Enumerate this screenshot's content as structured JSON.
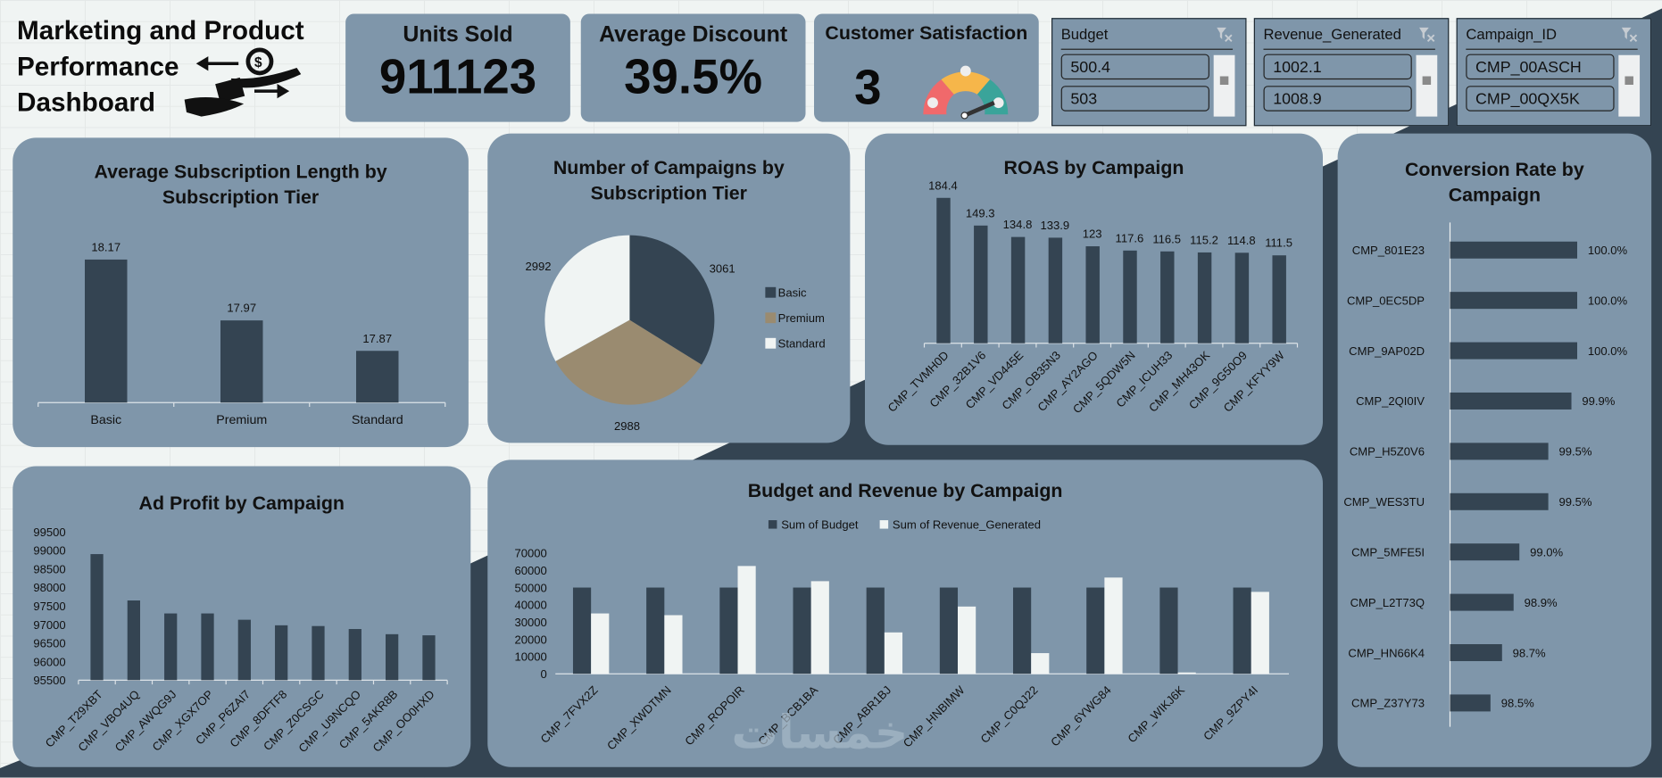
{
  "header": {
    "title_lines": [
      "Marketing and Product",
      "Performance",
      "Dashboard"
    ],
    "logo_icon": "hands-money-exchange-icon"
  },
  "kpis": {
    "units_sold": {
      "label": "Units Sold",
      "value": "911123"
    },
    "avg_discount": {
      "label": "Average Discount",
      "value": "39.5%"
    },
    "customer_satisfaction": {
      "label": "Customer Satisfaction",
      "value": "3",
      "gauge_icon": "satisfaction-gauge-icon"
    }
  },
  "slicers": [
    {
      "header": "Budget",
      "items": [
        "500.4",
        "503"
      ],
      "clear_icon": "clear-filter-icon"
    },
    {
      "header": "Revenue_Generated",
      "items": [
        "1002.1",
        "1008.9"
      ],
      "clear_icon": "clear-filter-icon"
    },
    {
      "header": "Campaign_ID",
      "items": [
        "CMP_00ASCH",
        "CMP_00QX5K"
      ],
      "clear_icon": "clear-filter-icon"
    }
  ],
  "colors": {
    "panel": "#7f96aa",
    "dark": "#344452",
    "light": "#f0f4f3",
    "premium": "#9a8b70",
    "gauge_red": "#f0696b",
    "gauge_yellow": "#f6b64a",
    "gauge_teal": "#3aa49a"
  },
  "chart_data": [
    {
      "id": "avg_sub_length",
      "type": "bar",
      "title": "Average Subscription Length by Subscription Tier",
      "title_lines": [
        "Average Subscription Length by",
        "Subscription Tier"
      ],
      "categories": [
        "Basic",
        "Premium",
        "Standard"
      ],
      "values": [
        18.17,
        17.97,
        17.87
      ],
      "value_labels": [
        "18.17",
        "17.97",
        "17.87"
      ],
      "ylim": [
        17.7,
        18.25
      ],
      "xlabel": "",
      "ylabel": "",
      "grid": false
    },
    {
      "id": "campaigns_by_tier",
      "type": "pie",
      "title": "Number of Campaigns by Subscription Tier",
      "title_lines": [
        "Number of Campaigns by",
        "Subscription Tier"
      ],
      "categories": [
        "Basic",
        "Premium",
        "Standard"
      ],
      "values": [
        3061,
        2988,
        2992
      ],
      "value_labels": [
        "3061",
        "2988",
        "2992"
      ],
      "legend": [
        "Basic",
        "Premium",
        "Standard"
      ],
      "legend_position": "right"
    },
    {
      "id": "roas_by_campaign",
      "type": "bar",
      "title": "ROAS by Campaign",
      "categories": [
        "CMP_TVMH0D",
        "CMP_32B1V6",
        "CMP_VD445E",
        "CMP_OB35N3",
        "CMP_AY2AGO",
        "CMP_5QDW5N",
        "CMP_ICUH33",
        "CMP_MH43OK",
        "CMP_9G50O9",
        "CMP_KFYY9W"
      ],
      "values": [
        184.4,
        149.3,
        134.8,
        133.9,
        123,
        117.6,
        116.5,
        115.2,
        114.8,
        111.5
      ],
      "value_labels": [
        "184.4",
        "149.3",
        "134.8",
        "133.9",
        "123",
        "117.6",
        "116.5",
        "115.2",
        "114.8",
        "111.5"
      ],
      "ylim": [
        0,
        190
      ],
      "grid": false
    },
    {
      "id": "conversion_rate",
      "type": "bar",
      "orientation": "horizontal",
      "title": "Conversion Rate by Campaign",
      "title_lines": [
        "Conversion Rate by",
        "Campaign"
      ],
      "categories": [
        "CMP_801E23",
        "CMP_0EC5DP",
        "CMP_9AP02D",
        "CMP_2QI0IV",
        "CMP_H5Z0V6",
        "CMP_WES3TU",
        "CMP_5MFE5I",
        "CMP_L2T73Q",
        "CMP_HN66K4",
        "CMP_Z37Y73"
      ],
      "values": [
        100.0,
        100.0,
        100.0,
        99.9,
        99.5,
        99.5,
        99.0,
        98.9,
        98.7,
        98.5
      ],
      "value_labels": [
        "100.0%",
        "100.0%",
        "100.0%",
        "99.9%",
        "99.5%",
        "99.5%",
        "99.0%",
        "98.9%",
        "98.7%",
        "98.5%"
      ],
      "xlim": [
        97.8,
        100.0
      ]
    },
    {
      "id": "ad_profit",
      "type": "bar",
      "title": "Ad Profit by Campaign",
      "categories": [
        "CMP_T29XBT",
        "CMP_VBO4UQ",
        "CMP_AWQG9J",
        "CMP_XGX7OP",
        "CMP_P6ZAI7",
        "CMP_8DFTF8",
        "CMP_Z0CSGC",
        "CMP_U9NCQO",
        "CMP_5AKR8B",
        "CMP_OO0HXD"
      ],
      "values": [
        98900,
        97650,
        97300,
        97300,
        97130,
        96980,
        96960,
        96880,
        96740,
        96710
      ],
      "yticks": [
        "95500",
        "96000",
        "96500",
        "97000",
        "97500",
        "98000",
        "98500",
        "99000",
        "99500"
      ],
      "ylim": [
        95500,
        99500
      ],
      "grid": false
    },
    {
      "id": "budget_revenue",
      "type": "bar",
      "title": "Budget and Revenue by Campaign",
      "categories": [
        "CMP_7FVX2Z",
        "CMP_XWDTMN",
        "CMP_ROPOIR",
        "CMP_BCB1BA",
        "CMP_ABR1BJ",
        "CMP_HNBIMW",
        "CMP_C0QJ22",
        "CMP_6YWG84",
        "CMP_WIKJ6K",
        "CMP_9ZPY4I"
      ],
      "series": [
        {
          "name": "Sum of Budget",
          "values": [
            50000,
            50000,
            50000,
            50000,
            50000,
            50000,
            50000,
            50000,
            50000,
            50000
          ]
        },
        {
          "name": "Sum of Revenue_Generated",
          "values": [
            35000,
            34000,
            62500,
            53700,
            24000,
            39000,
            12000,
            55800,
            800,
            47500
          ]
        }
      ],
      "yticks": [
        "0",
        "10000",
        "20000",
        "30000",
        "40000",
        "50000",
        "60000",
        "70000"
      ],
      "ylim": [
        0,
        70000
      ],
      "legend_position": "top"
    }
  ],
  "watermark": "خمسات"
}
